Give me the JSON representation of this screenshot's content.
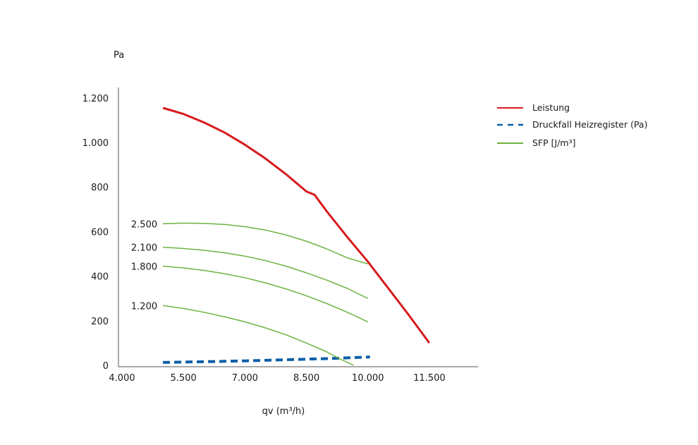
{
  "chart_data": {
    "type": "line",
    "ylabel": "Pa",
    "xlabel": "qv (m³/h)",
    "xlim": [
      4000,
      12500
    ],
    "ylim": [
      0,
      1250
    ],
    "x_ticks": [
      {
        "value": 4000,
        "label": "4.000"
      },
      {
        "value": 5500,
        "label": "5.500"
      },
      {
        "value": 7000,
        "label": "7.000"
      },
      {
        "value": 8500,
        "label": "8.500"
      },
      {
        "value": 10000,
        "label": "10.000"
      },
      {
        "value": 11500,
        "label": "11.500"
      }
    ],
    "y_ticks": [
      {
        "value": 0,
        "label": "0"
      },
      {
        "value": 200,
        "label": "200"
      },
      {
        "value": 400,
        "label": "400"
      },
      {
        "value": 600,
        "label": "600"
      },
      {
        "value": 800,
        "label": "800"
      },
      {
        "value": 1000,
        "label": "1.000"
      },
      {
        "value": 1200,
        "label": "1.200"
      }
    ],
    "grid": false,
    "legend_position": "right",
    "series": [
      {
        "name": "Leistung",
        "color": "#d7191c",
        "style": "solid",
        "width": 3,
        "points": [
          [
            5000,
            1155
          ],
          [
            5500,
            1128
          ],
          [
            6000,
            1090
          ],
          [
            6500,
            1045
          ],
          [
            7000,
            990
          ],
          [
            7500,
            928
          ],
          [
            8000,
            858
          ],
          [
            8500,
            780
          ],
          [
            8700,
            765
          ],
          [
            9000,
            690
          ],
          [
            9500,
            575
          ],
          [
            10000,
            465
          ],
          [
            10500,
            345
          ],
          [
            11000,
            225
          ],
          [
            11500,
            100
          ]
        ]
      },
      {
        "name": "Druckfall Heizregister (Pa)",
        "color": "#0b5ea8",
        "style": "dashed",
        "width": 4,
        "points": [
          [
            5000,
            13
          ],
          [
            6000,
            16
          ],
          [
            7000,
            20
          ],
          [
            8000,
            25
          ],
          [
            9000,
            30
          ],
          [
            10000,
            37
          ],
          [
            10050,
            38
          ]
        ]
      },
      {
        "name": "SFP [J/m³]",
        "color": "#6db33f",
        "style": "solid",
        "width": 1.5,
        "curves": [
          {
            "label": "2.500",
            "points": [
              [
                5000,
                635
              ],
              [
                5500,
                638
              ],
              [
                6000,
                637
              ],
              [
                6500,
                632
              ],
              [
                7000,
                622
              ],
              [
                7500,
                607
              ],
              [
                8000,
                585
              ],
              [
                8500,
                557
              ],
              [
                9000,
                522
              ],
              [
                9500,
                482
              ],
              [
                10000,
                455
              ]
            ]
          },
          {
            "label": "2.100",
            "points": [
              [
                5000,
                530
              ],
              [
                5500,
                524
              ],
              [
                6000,
                516
              ],
              [
                6500,
                505
              ],
              [
                7000,
                490
              ],
              [
                7500,
                470
              ],
              [
                8000,
                445
              ],
              [
                8500,
                415
              ],
              [
                9000,
                382
              ],
              [
                9500,
                345
              ],
              [
                10000,
                300
              ]
            ]
          },
          {
            "label": "1.800",
            "points": [
              [
                5000,
                445
              ],
              [
                5500,
                437
              ],
              [
                6000,
                426
              ],
              [
                6500,
                411
              ],
              [
                7000,
                393
              ],
              [
                7500,
                370
              ],
              [
                8000,
                343
              ],
              [
                8500,
                312
              ],
              [
                9000,
                277
              ],
              [
                9500,
                238
              ],
              [
                10000,
                195
              ]
            ]
          },
          {
            "label": "1.200",
            "points": [
              [
                5000,
                268
              ],
              [
                5500,
                255
              ],
              [
                6000,
                238
              ],
              [
                6500,
                218
              ],
              [
                7000,
                195
              ],
              [
                7500,
                168
              ],
              [
                8000,
                137
              ],
              [
                8500,
                100
              ],
              [
                9000,
                60
              ],
              [
                9300,
                30
              ],
              [
                9650,
                0
              ]
            ]
          }
        ]
      }
    ]
  }
}
